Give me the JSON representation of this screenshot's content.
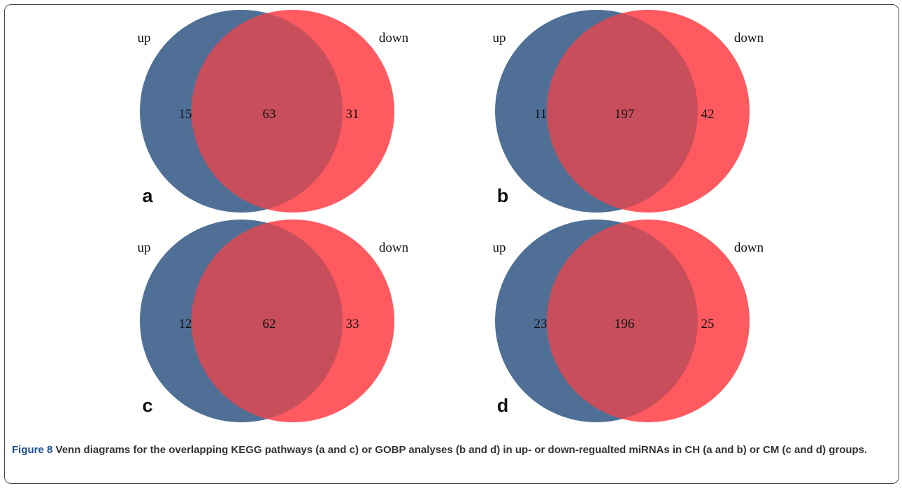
{
  "figure": {
    "caption_label": "Figure 8",
    "caption_text": " Venn diagrams for the overlapping KEGG pathways (a and c) or GOBP analyses (b and d) in up- or down-regualted miRNAs in CH (a and b) or CM (c and d) groups."
  },
  "colors": {
    "up": "#4f6f96",
    "down": "#ff5a60",
    "overlap": "#c84e5b"
  },
  "panels": [
    {
      "letter": "a",
      "up_label": "up",
      "down_label": "down",
      "up_only": "15",
      "overlap": "63",
      "down_only": "31"
    },
    {
      "letter": "b",
      "up_label": "up",
      "down_label": "down",
      "up_only": "11",
      "overlap": "197",
      "down_only": "42"
    },
    {
      "letter": "c",
      "up_label": "up",
      "down_label": "down",
      "up_only": "12",
      "overlap": "62",
      "down_only": "33"
    },
    {
      "letter": "d",
      "up_label": "up",
      "down_label": "down",
      "up_only": "23",
      "overlap": "196",
      "down_only": "25"
    }
  ]
}
